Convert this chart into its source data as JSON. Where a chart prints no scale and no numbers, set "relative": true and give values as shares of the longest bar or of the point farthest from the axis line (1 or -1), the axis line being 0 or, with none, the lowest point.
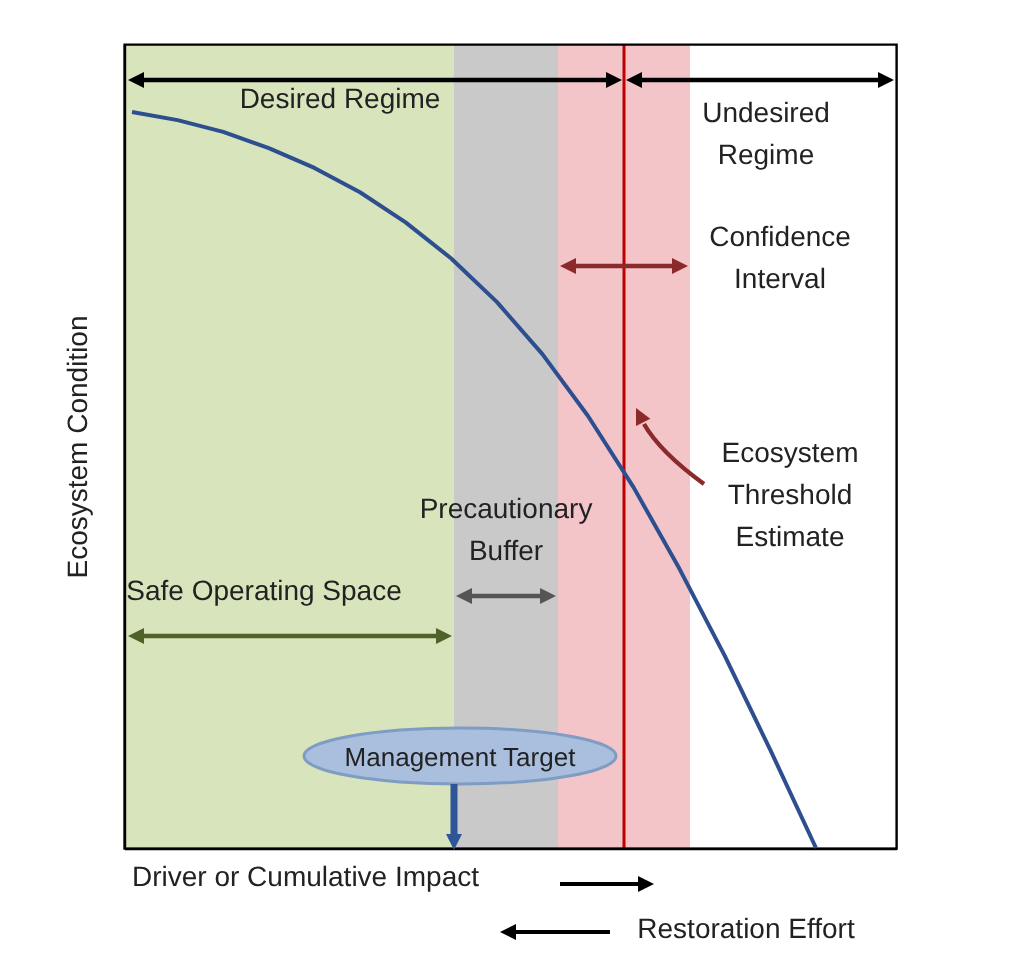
{
  "chart_data": {
    "type": "line",
    "relative": true,
    "ylabel": "Ecosystem Condition",
    "xlabel": "Driver or Cumulative Impact",
    "grid": false,
    "marker": "none",
    "line_style": "solid",
    "categories": [
      null,
      null,
      null,
      null,
      null,
      null,
      null,
      null,
      null,
      null,
      null,
      null,
      null,
      null,
      null,
      null
    ],
    "series": [
      {
        "color": "#2e4f8f",
        "values": [
          1.0,
          0.989,
          0.973,
          0.951,
          0.924,
          0.891,
          0.85,
          0.801,
          0.742,
          0.671,
          0.587,
          0.49,
          0.38,
          0.261,
          0.133,
          0
        ]
      }
    ],
    "annotations": [
      "Desired Regime",
      "Undesired Regime",
      "Confidence Interval",
      "Ecosystem Threshold Estimate",
      "Precautionary Buffer",
      "Safe Operating Space",
      "Management Target",
      "Restoration Effort"
    ]
  }
}
